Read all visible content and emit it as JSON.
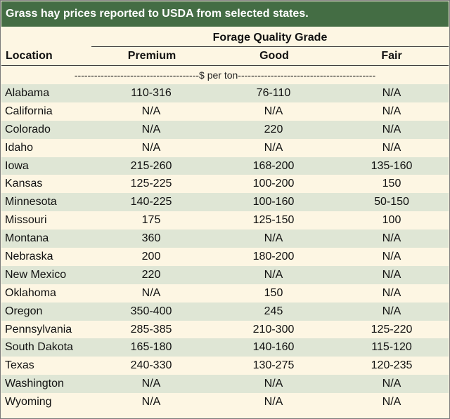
{
  "title": "Grass hay prices reported to USDA from selected states.",
  "headers": {
    "location": "Location",
    "grade_group": "Forage Quality Grade",
    "premium": "Premium",
    "good": "Good",
    "fair": "Fair"
  },
  "unit": "--------------------------------------$ per ton------------------------------------------",
  "rows": [
    {
      "location": "Alabama",
      "premium": "110-316",
      "good": "76-110",
      "fair": "N/A"
    },
    {
      "location": "California",
      "premium": "N/A",
      "good": "N/A",
      "fair": "N/A"
    },
    {
      "location": "Colorado",
      "premium": "N/A",
      "good": "220",
      "fair": "N/A"
    },
    {
      "location": "Idaho",
      "premium": "N/A",
      "good": "N/A",
      "fair": "N/A"
    },
    {
      "location": "Iowa",
      "premium": "215-260",
      "good": "168-200",
      "fair": "135-160"
    },
    {
      "location": "Kansas",
      "premium": "125-225",
      "good": "100-200",
      "fair": "150"
    },
    {
      "location": "Minnesota",
      "premium": "140-225",
      "good": "100-160",
      "fair": "50-150"
    },
    {
      "location": "Missouri",
      "premium": "175",
      "good": "125-150",
      "fair": "100"
    },
    {
      "location": "Montana",
      "premium": "360",
      "good": "N/A",
      "fair": "N/A"
    },
    {
      "location": "Nebraska",
      "premium": "200",
      "good": "180-200",
      "fair": "N/A"
    },
    {
      "location": "New Mexico",
      "premium": "220",
      "good": "N/A",
      "fair": "N/A"
    },
    {
      "location": "Oklahoma",
      "premium": "N/A",
      "good": "150",
      "fair": "N/A"
    },
    {
      "location": "Oregon",
      "premium": "350-400",
      "good": "245",
      "fair": "N/A"
    },
    {
      "location": "Pennsylvania",
      "premium": "285-385",
      "good": "210-300",
      "fair": "125-220"
    },
    {
      "location": "South Dakota",
      "premium": "165-180",
      "good": "140-160",
      "fair": "115-120"
    },
    {
      "location": "Texas",
      "premium": "240-330",
      "good": "130-275",
      "fair": "120-235"
    },
    {
      "location": "Washington",
      "premium": "N/A",
      "good": "N/A",
      "fair": "N/A"
    },
    {
      "location": "Wyoming",
      "premium": "N/A",
      "good": "N/A",
      "fair": "N/A"
    }
  ]
}
